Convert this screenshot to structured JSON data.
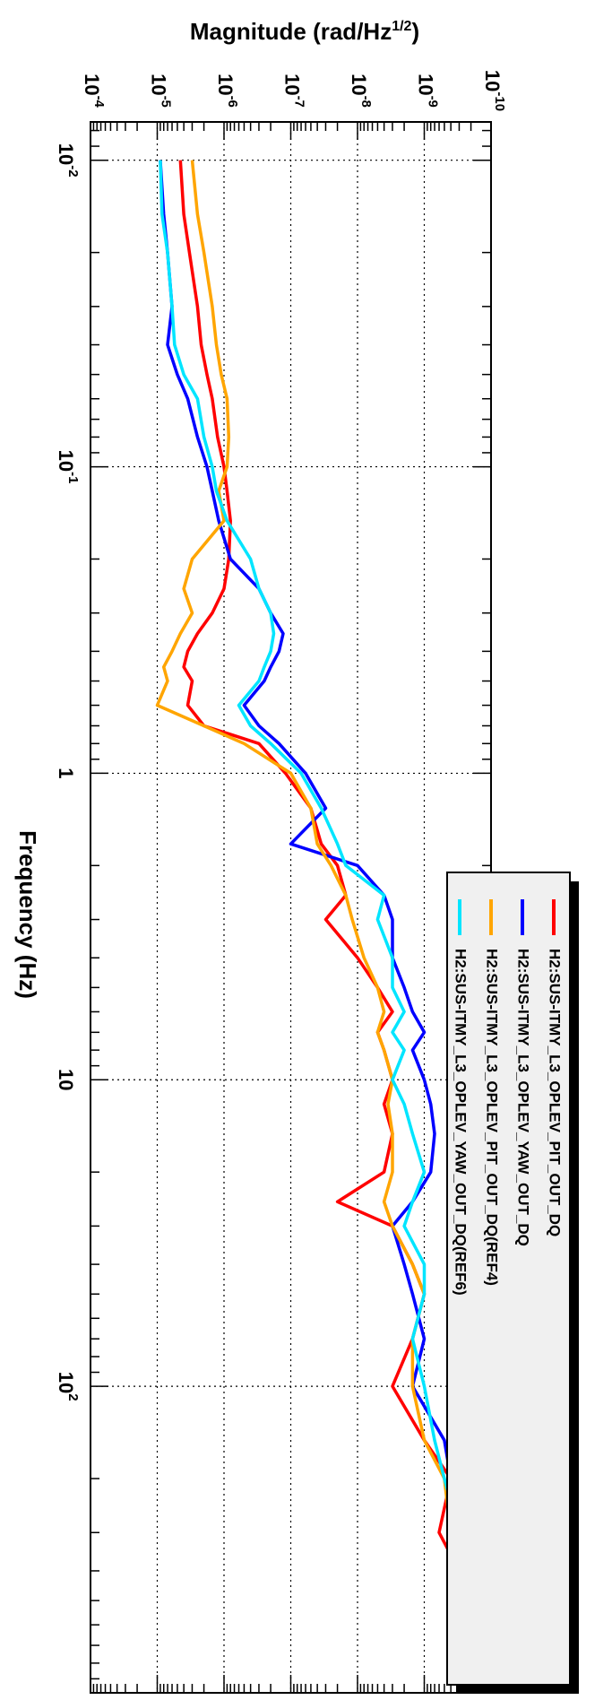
{
  "chart_data": {
    "type": "line",
    "orientation": "rotated-90-clockwise",
    "xlabel": "Frequency (Hz)",
    "ylabel": "Magnitude (rad/Hz^(1/2))",
    "ylabel_text": "Magnitude (rad/Hz",
    "ylabel_sup": "1/2",
    "ylabel_close": ")",
    "x_scale": "log",
    "y_scale": "log",
    "xlim": [
      0.0075,
      1000
    ],
    "ylim": [
      1e-10,
      0.0001
    ],
    "grid": true,
    "legend_position": "right",
    "x_ticks": [
      {
        "value": 0.01,
        "base": "10",
        "exp": "-2"
      },
      {
        "value": 0.1,
        "base": "10",
        "exp": "-1"
      },
      {
        "value": 1,
        "base": "1",
        "exp": ""
      },
      {
        "value": 10,
        "base": "10",
        "exp": ""
      },
      {
        "value": 100,
        "base": "10",
        "exp": "2"
      }
    ],
    "y_ticks": [
      {
        "value": 1e-10,
        "base": "10",
        "exp": "-10"
      },
      {
        "value": 1e-09,
        "base": "10",
        "exp": "-9"
      },
      {
        "value": 1e-08,
        "base": "10",
        "exp": "-8"
      },
      {
        "value": 1e-07,
        "base": "10",
        "exp": "-7"
      },
      {
        "value": 1e-06,
        "base": "10",
        "exp": "-6"
      },
      {
        "value": 1e-05,
        "base": "10",
        "exp": "-5"
      },
      {
        "value": 0.0001,
        "base": "10",
        "exp": "-4"
      }
    ],
    "series": [
      {
        "name": "H2:SUS-ITMY_L3_OPLEV_PIT_OUT_DQ",
        "color": "#ff0000",
        "x": [
          0.01,
          0.015,
          0.02,
          0.03,
          0.04,
          0.05,
          0.06,
          0.08,
          0.1,
          0.12,
          0.15,
          0.2,
          0.25,
          0.3,
          0.35,
          0.4,
          0.45,
          0.5,
          0.6,
          0.7,
          0.8,
          1,
          1.3,
          1.7,
          2,
          2.5,
          3,
          4,
          5,
          6,
          7,
          8,
          10,
          12,
          15,
          20,
          25,
          30,
          40,
          50,
          70,
          100,
          150,
          200,
          300,
          400,
          500,
          700
        ],
        "y": [
          4.5e-06,
          4e-06,
          3.3e-06,
          2.5e-06,
          2.2e-06,
          1.8e-06,
          1.5e-06,
          1.25e-06,
          1e-06,
          9e-07,
          8e-07,
          8.5e-07,
          1e-06,
          1.5e-06,
          2.5e-06,
          3.5e-06,
          4e-06,
          3e-06,
          3.5e-06,
          2e-06,
          3e-07,
          1.2e-07,
          5e-08,
          3.5e-08,
          2e-08,
          1.5e-08,
          3e-08,
          1e-08,
          5e-09,
          3e-09,
          5e-09,
          4e-09,
          3e-09,
          4e-09,
          3e-09,
          4e-09,
          2e-08,
          3e-09,
          1.5e-09,
          1e-09,
          1.5e-09,
          3e-09,
          1e-09,
          4e-10,
          6e-10,
          3e-10,
          2.5e-10,
          2e-10
        ]
      },
      {
        "name": "H2:SUS-ITMY_L3_OPLEV_YAW_OUT_DQ",
        "color": "#0000ff",
        "x": [
          0.01,
          0.015,
          0.02,
          0.03,
          0.04,
          0.05,
          0.06,
          0.08,
          0.1,
          0.12,
          0.15,
          0.2,
          0.25,
          0.3,
          0.35,
          0.4,
          0.45,
          0.5,
          0.6,
          0.7,
          0.8,
          1,
          1.3,
          1.7,
          2,
          2.5,
          3,
          4,
          5,
          6,
          7,
          8,
          10,
          12,
          15,
          20,
          25,
          30,
          40,
          50,
          70,
          100,
          150,
          200,
          300,
          400,
          500,
          700
        ],
        "y": [
          9e-06,
          8e-06,
          7e-06,
          6e-06,
          7e-06,
          5e-06,
          3.5e-06,
          2.5e-06,
          1.8e-06,
          1.5e-06,
          1.2e-06,
          8e-07,
          3e-07,
          2e-07,
          1.3e-07,
          1.5e-07,
          2e-07,
          2.5e-07,
          5e-07,
          3e-07,
          1.5e-07,
          6e-08,
          3e-08,
          1e-07,
          1e-08,
          4e-09,
          3e-09,
          3e-09,
          2e-09,
          1.5e-09,
          1e-09,
          1.5e-09,
          1e-09,
          8e-10,
          7e-10,
          8e-10,
          1.5e-09,
          3e-09,
          2e-09,
          1.5e-09,
          1e-09,
          1.5e-09,
          5e-10,
          4e-10,
          3e-10,
          2.5e-10,
          2e-10,
          1.5e-10
        ]
      },
      {
        "name": "H2:SUS-ITMY_L3_OPLEV_PIT_OUT_DQ(REF4)",
        "color": "#ffa500",
        "x": [
          0.01,
          0.015,
          0.02,
          0.03,
          0.04,
          0.05,
          0.06,
          0.08,
          0.1,
          0.12,
          0.15,
          0.2,
          0.25,
          0.3,
          0.35,
          0.4,
          0.45,
          0.5,
          0.6,
          0.7,
          0.8,
          1,
          1.3,
          1.7,
          2,
          2.5,
          3,
          4,
          5,
          6,
          7,
          8,
          10,
          12,
          15,
          20,
          25,
          30,
          40,
          50,
          70,
          100,
          150,
          200,
          300,
          400,
          500,
          700
        ],
        "y": [
          3e-06,
          2.5e-06,
          2e-06,
          1.5e-06,
          1.3e-06,
          1.1e-06,
          9e-07,
          8.5e-07,
          9e-07,
          1.2e-06,
          1e-06,
          3e-06,
          4e-06,
          3e-06,
          4.5e-06,
          6e-06,
          8e-06,
          7e-06,
          1e-05,
          2e-06,
          5e-07,
          1e-07,
          5e-08,
          4e-08,
          2.5e-08,
          1.5e-08,
          1.2e-08,
          8e-09,
          5e-09,
          4e-09,
          5e-09,
          4e-09,
          3e-09,
          3.5e-09,
          3e-09,
          3e-09,
          4e-09,
          3e-09,
          1.5e-09,
          1e-09,
          1.5e-09,
          1.5e-09,
          1e-09,
          5e-10,
          4e-10,
          3e-10,
          2.5e-10,
          2e-10
        ]
      },
      {
        "name": "H2:SUS-ITMY_L3_OPLEV_YAW_OUT_DQ(REF6)",
        "color": "#00e5ff",
        "x": [
          0.01,
          0.015,
          0.02,
          0.03,
          0.04,
          0.05,
          0.06,
          0.08,
          0.1,
          0.12,
          0.15,
          0.2,
          0.25,
          0.3,
          0.35,
          0.4,
          0.45,
          0.5,
          0.6,
          0.7,
          0.8,
          1,
          1.3,
          1.7,
          2,
          2.5,
          3,
          4,
          5,
          6,
          7,
          8,
          10,
          12,
          15,
          20,
          25,
          30,
          40,
          50,
          70,
          100,
          150,
          200,
          300,
          400,
          500,
          700
        ],
        "y": [
          9e-06,
          8.5e-06,
          7e-06,
          6e-06,
          5.5e-06,
          4e-06,
          2.5e-06,
          2e-06,
          1.5e-06,
          1.3e-06,
          9e-07,
          4e-07,
          3e-07,
          2e-07,
          1.8e-07,
          2e-07,
          2.5e-07,
          3e-07,
          6e-07,
          4e-07,
          2e-07,
          7e-08,
          3.5e-08,
          2e-08,
          1.5e-08,
          4e-09,
          5e-09,
          3e-09,
          3e-09,
          2e-09,
          3e-09,
          2e-09,
          3e-09,
          2e-09,
          1.5e-09,
          1e-09,
          1.5e-09,
          2e-09,
          1e-09,
          1e-09,
          1.5e-09,
          1e-09,
          7e-10,
          5e-10,
          3e-10,
          2e-10,
          2e-10,
          1.5e-10
        ]
      }
    ]
  }
}
